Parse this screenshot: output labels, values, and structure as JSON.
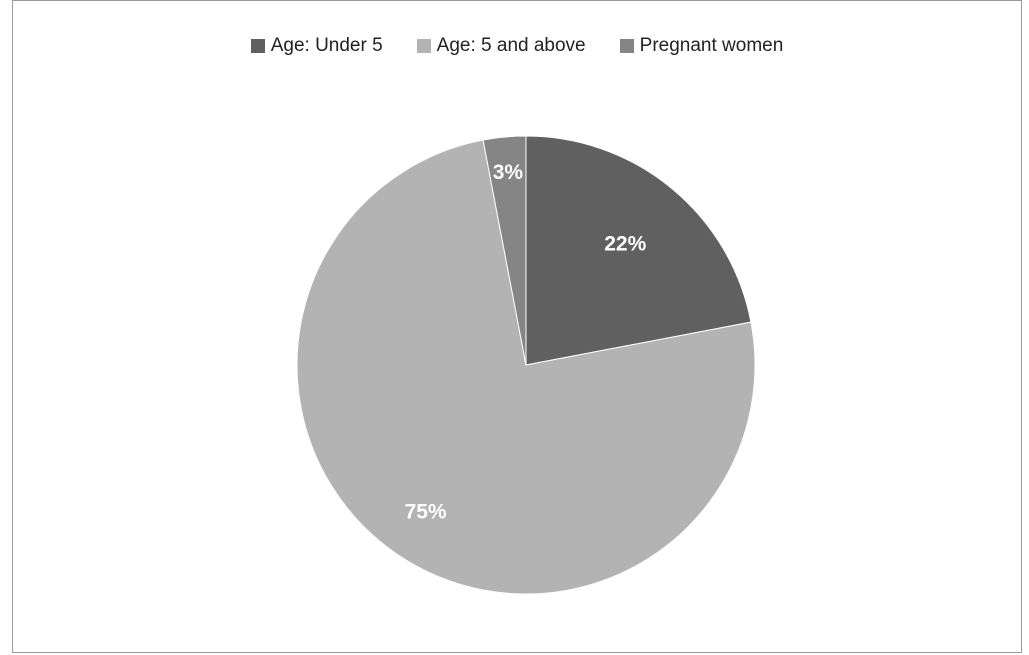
{
  "chart_data": {
    "type": "pie",
    "title": "",
    "categories": [
      "Age: Under 5",
      "Age: 5 and above",
      "Pregnant women"
    ],
    "values": [
      22,
      75,
      3
    ],
    "data_labels": [
      "22%",
      "75%",
      "3%"
    ],
    "colors": [
      "#606060",
      "#b3b3b3",
      "#858585"
    ],
    "legend_position": "top",
    "start_angle": "12 o'clock, clockwise"
  }
}
